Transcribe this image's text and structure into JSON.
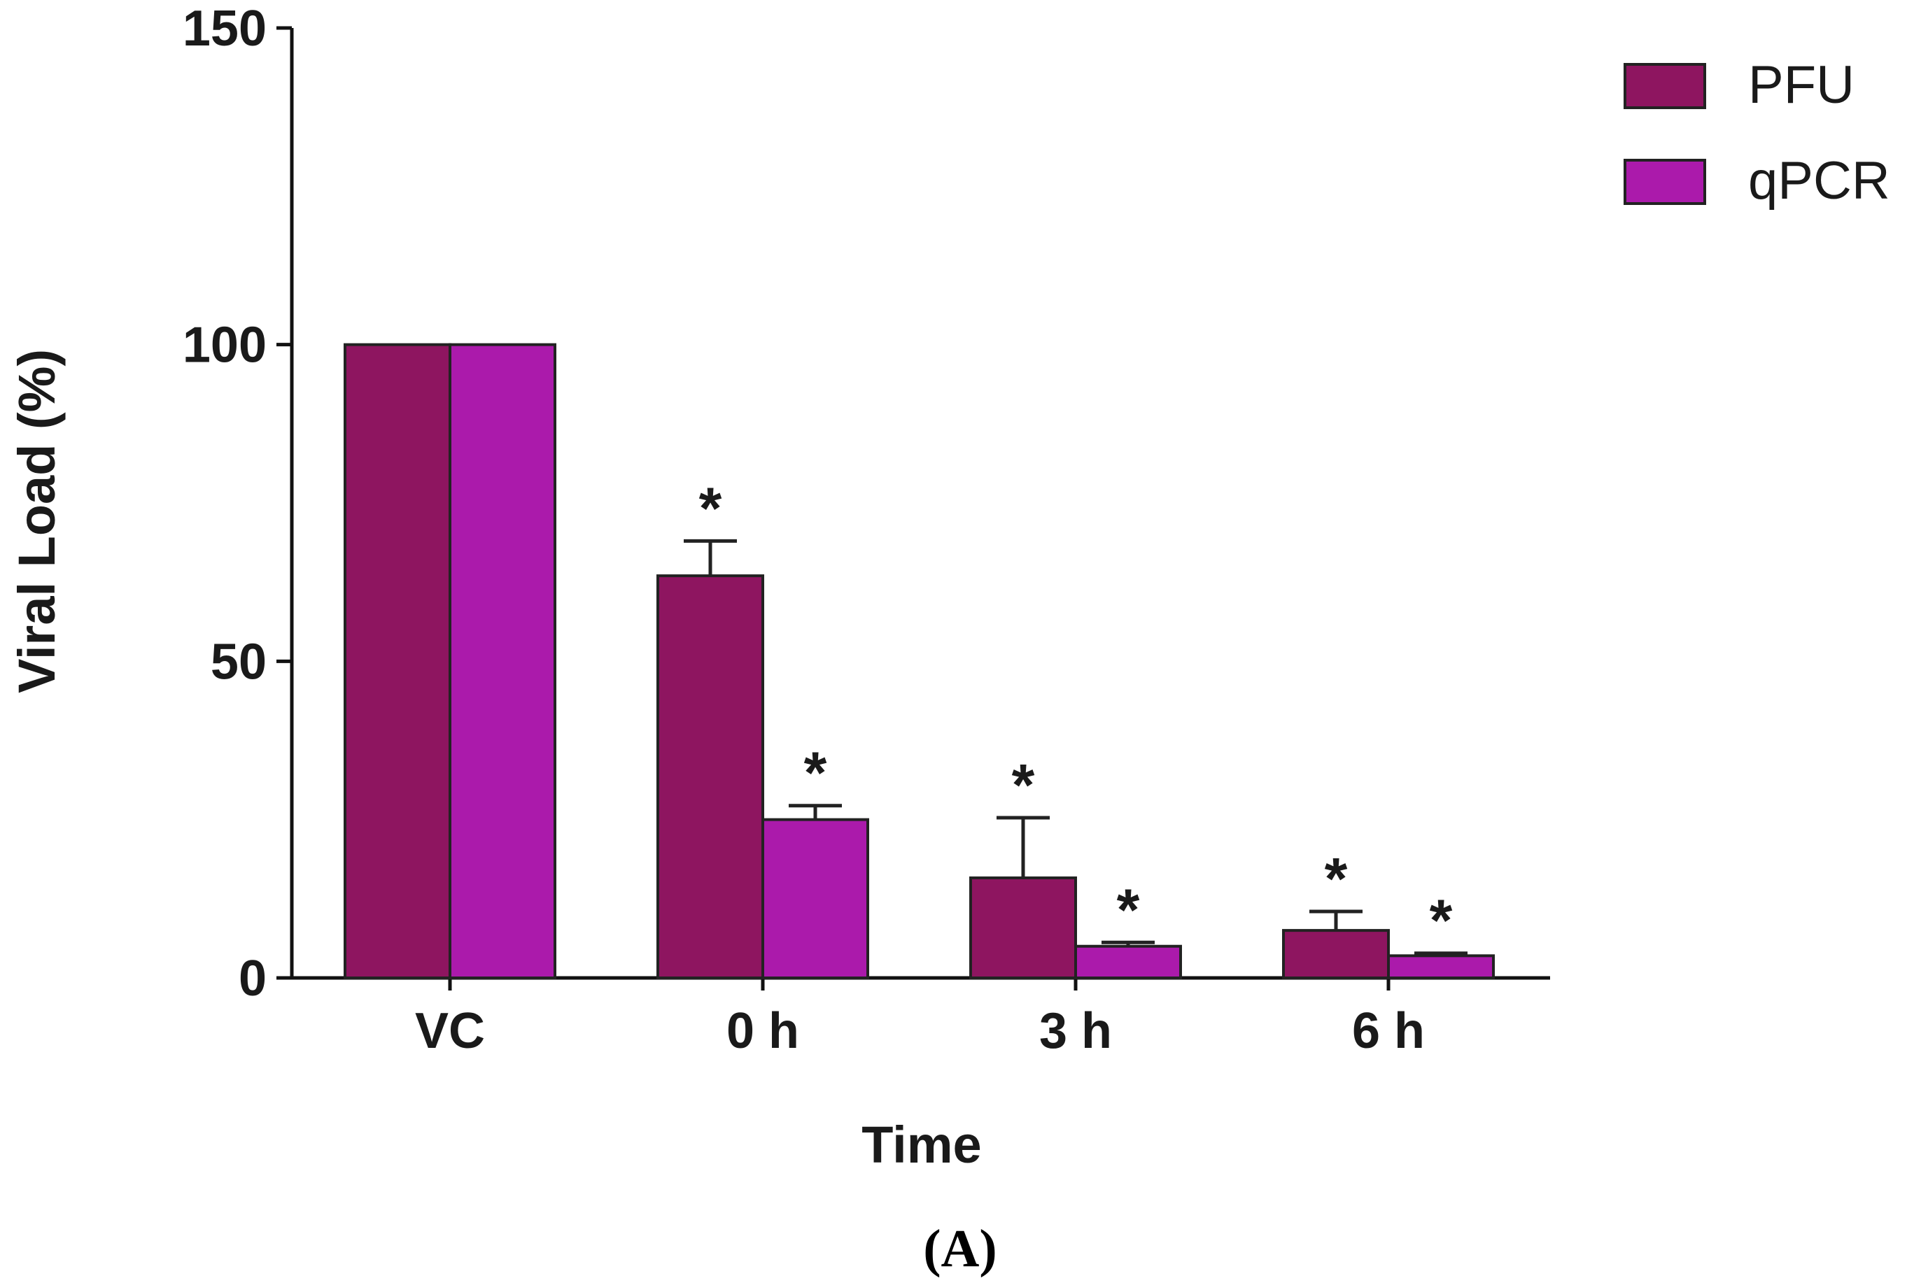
{
  "chart_data": {
    "type": "bar",
    "title": "",
    "xlabel": "Time",
    "ylabel": "Viral Load (%)",
    "ylim": [
      0,
      150
    ],
    "yticks": [
      0,
      50,
      100,
      150
    ],
    "categories": [
      "VC",
      "0 h",
      "3 h",
      "6 h"
    ],
    "series": [
      {
        "name": "PFU",
        "color": "#8e1560",
        "values": [
          100,
          63.5,
          15.8,
          7.5
        ],
        "errors": [
          0,
          5.5,
          9.5,
          3.0
        ],
        "significance": [
          "",
          "*",
          "*",
          "*"
        ]
      },
      {
        "name": "qPCR",
        "color": "#ab1aab",
        "values": [
          100,
          25,
          5,
          3.5
        ],
        "errors": [
          0,
          2.2,
          0.6,
          0.4
        ],
        "significance": [
          "",
          "*",
          "*",
          "*"
        ]
      }
    ],
    "legend_position": "top-right",
    "grid": false
  },
  "panel_label": "(A)"
}
